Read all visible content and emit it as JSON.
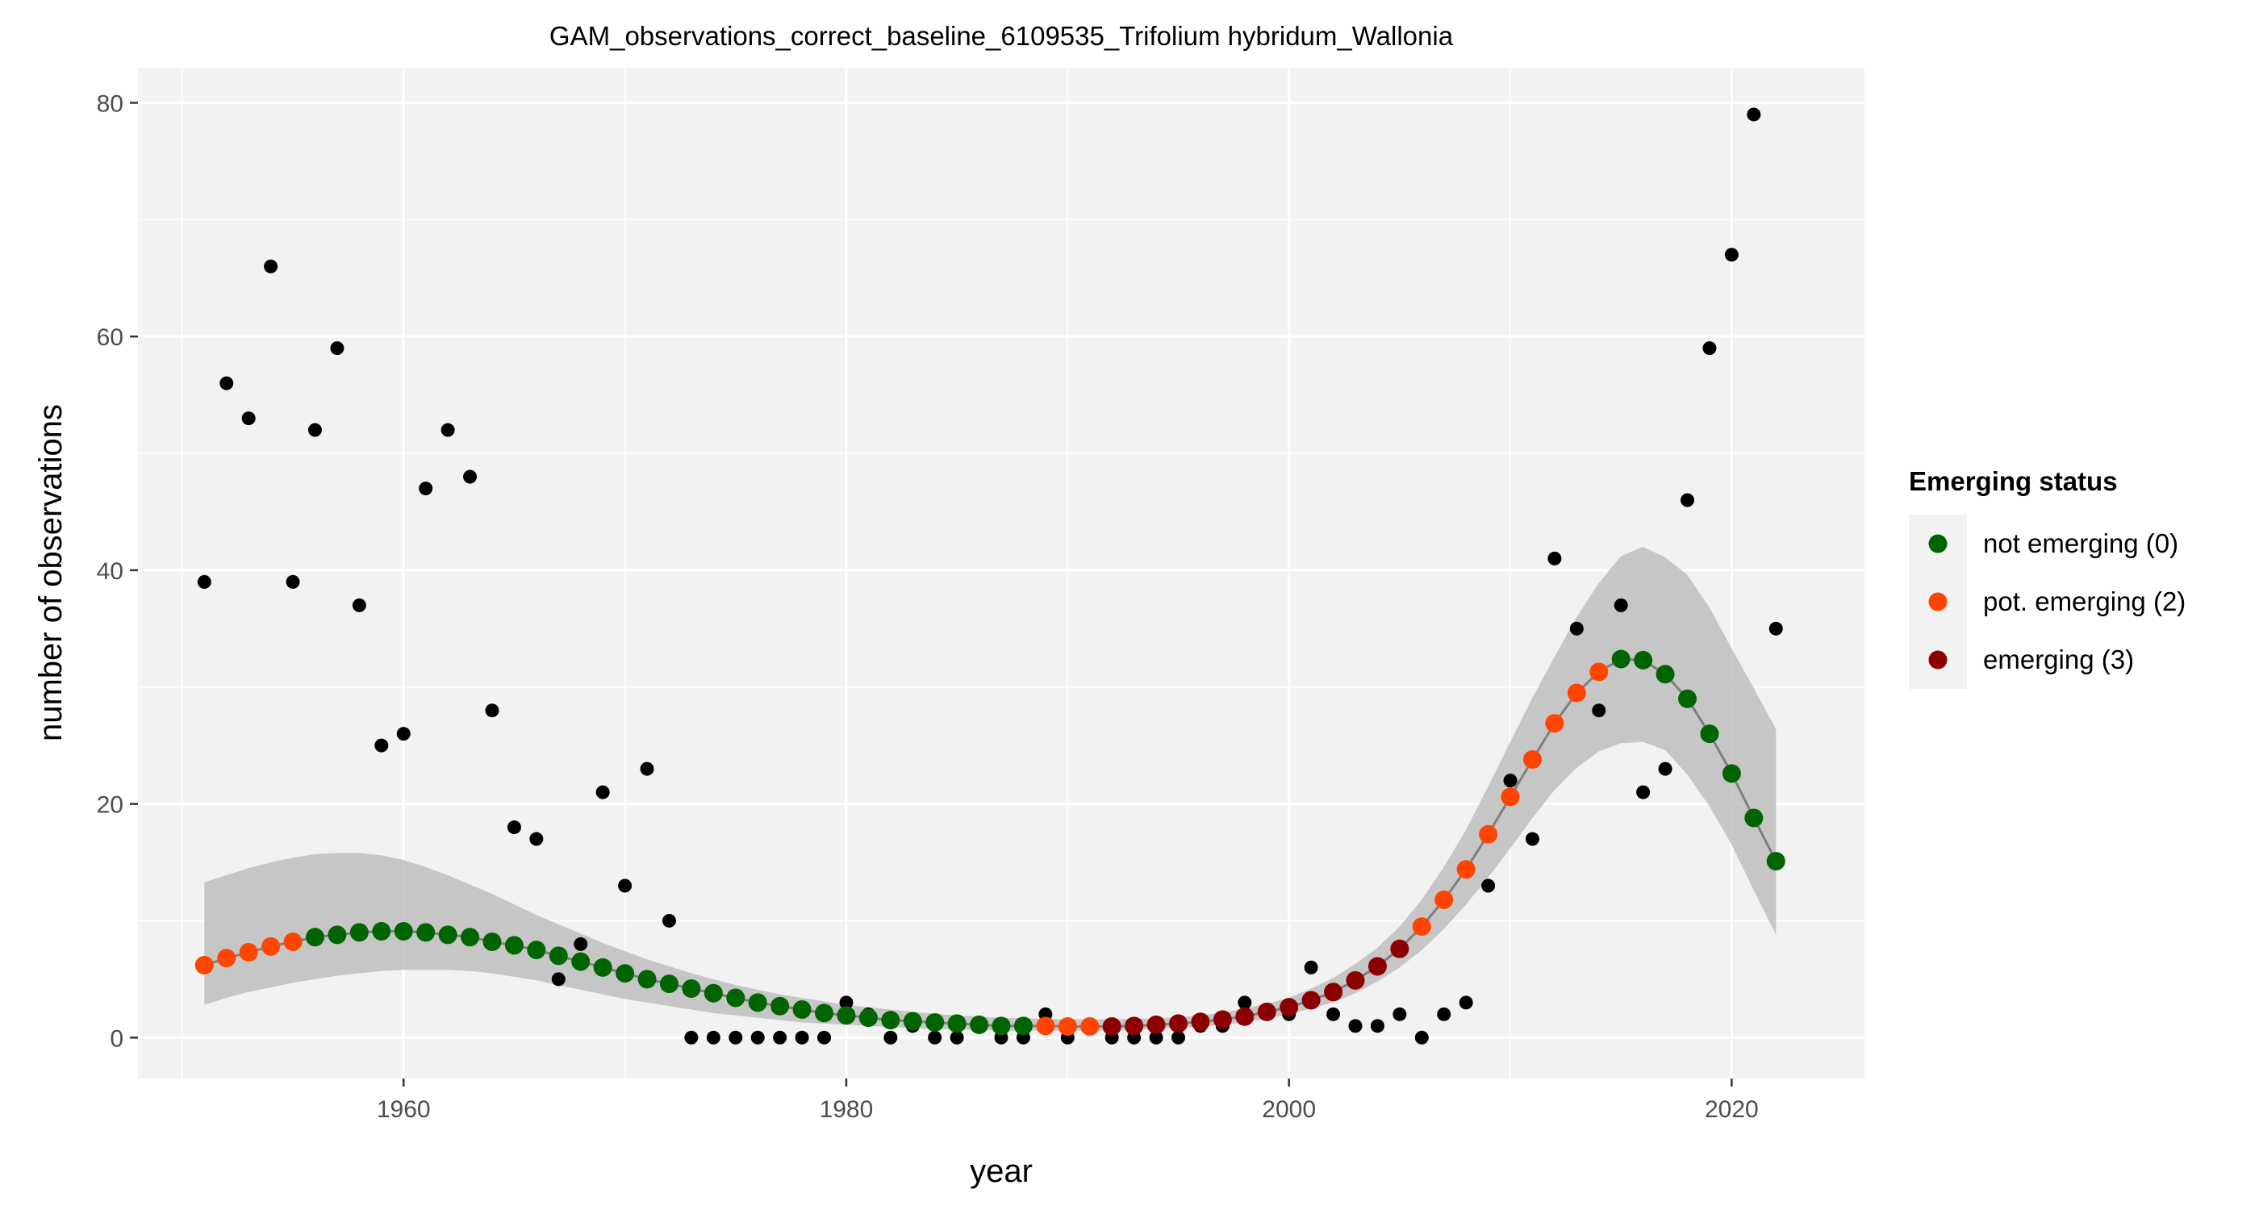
{
  "chart_data": {
    "type": "scatter",
    "title": "GAM_observations_correct_baseline_6109535_Trifolium hybridum_Wallonia",
    "xlabel": "year",
    "ylabel": "number of observations",
    "xlim": [
      1948,
      2026
    ],
    "ylim": [
      -3.5,
      83
    ],
    "x_ticks": [
      1960,
      1980,
      2000,
      2020
    ],
    "y_ticks": [
      0,
      20,
      40,
      60,
      80
    ],
    "grid": true,
    "legend": {
      "title": "Emerging status",
      "position": "right",
      "entries": [
        {
          "label": "not emerging (0)",
          "color": "#006400"
        },
        {
          "label": "pot. emerging (2)",
          "color": "#ff4500"
        },
        {
          "label": "emerging (3)",
          "color": "#8b0000"
        }
      ]
    },
    "observed": {
      "x": [
        1951,
        1952,
        1953,
        1954,
        1955,
        1956,
        1957,
        1958,
        1959,
        1960,
        1961,
        1962,
        1963,
        1964,
        1965,
        1966,
        1967,
        1968,
        1969,
        1970,
        1971,
        1972,
        1973,
        1974,
        1975,
        1976,
        1977,
        1978,
        1979,
        1980,
        1981,
        1982,
        1983,
        1984,
        1985,
        1986,
        1987,
        1988,
        1989,
        1990,
        1991,
        1992,
        1993,
        1994,
        1995,
        1996,
        1997,
        1998,
        1999,
        2000,
        2001,
        2002,
        2003,
        2004,
        2005,
        2006,
        2007,
        2008,
        2009,
        2010,
        2011,
        2012,
        2013,
        2014,
        2015,
        2016,
        2017,
        2018,
        2019,
        2020,
        2021,
        2022
      ],
      "y": [
        39,
        56,
        53,
        66,
        39,
        52,
        59,
        37,
        25,
        26,
        47,
        52,
        48,
        28,
        18,
        17,
        5,
        8,
        21,
        13,
        23,
        10,
        0,
        0,
        0,
        0,
        0,
        0,
        0,
        3,
        2,
        0,
        1,
        0,
        0,
        1,
        0,
        0,
        2,
        0,
        1,
        0,
        0,
        0,
        0,
        1,
        1,
        3,
        2,
        2,
        6,
        2,
        1,
        1,
        2,
        0,
        2,
        3,
        13,
        22,
        17,
        41,
        35,
        28,
        37,
        21,
        23,
        46,
        59,
        67,
        79,
        35
      ],
      "color": "#000000"
    },
    "gam_fit": {
      "x": [
        1951,
        1952,
        1953,
        1954,
        1955,
        1956,
        1957,
        1958,
        1959,
        1960,
        1961,
        1962,
        1963,
        1964,
        1965,
        1966,
        1967,
        1968,
        1969,
        1970,
        1971,
        1972,
        1973,
        1974,
        1975,
        1976,
        1977,
        1978,
        1979,
        1980,
        1981,
        1982,
        1983,
        1984,
        1985,
        1986,
        1987,
        1988,
        1989,
        1990,
        1991,
        1992,
        1993,
        1994,
        1995,
        1996,
        1997,
        1998,
        1999,
        2000,
        2001,
        2002,
        2003,
        2004,
        2005,
        2006,
        2007,
        2008,
        2009,
        2010,
        2011,
        2012,
        2013,
        2014,
        2015,
        2016,
        2017,
        2018,
        2019,
        2020,
        2021,
        2022
      ],
      "y": [
        6.2,
        6.8,
        7.3,
        7.8,
        8.2,
        8.6,
        8.8,
        9.0,
        9.1,
        9.1,
        9.0,
        8.8,
        8.6,
        8.2,
        7.9,
        7.5,
        7.0,
        6.5,
        6.0,
        5.5,
        5.0,
        4.6,
        4.2,
        3.8,
        3.4,
        3.0,
        2.7,
        2.4,
        2.1,
        1.9,
        1.7,
        1.5,
        1.4,
        1.3,
        1.2,
        1.1,
        1.0,
        1.0,
        1.0,
        0.95,
        0.95,
        0.95,
        1.0,
        1.1,
        1.2,
        1.35,
        1.55,
        1.8,
        2.2,
        2.6,
        3.2,
        3.9,
        4.9,
        6.1,
        7.6,
        9.5,
        11.8,
        14.4,
        17.4,
        20.6,
        23.8,
        26.9,
        29.5,
        31.3,
        32.4,
        32.3,
        31.1,
        29.0,
        26.0,
        22.6,
        18.8,
        15.1
      ],
      "lower": [
        2.8,
        3.4,
        3.9,
        4.3,
        4.7,
        5.0,
        5.3,
        5.5,
        5.7,
        5.8,
        5.8,
        5.8,
        5.7,
        5.5,
        5.2,
        4.9,
        4.5,
        4.1,
        3.7,
        3.3,
        3.0,
        2.7,
        2.4,
        2.1,
        1.9,
        1.7,
        1.5,
        1.3,
        1.2,
        1.1,
        1.0,
        0.9,
        0.8,
        0.75,
        0.7,
        0.65,
        0.6,
        0.6,
        0.6,
        0.6,
        0.6,
        0.6,
        0.65,
        0.75,
        0.85,
        0.95,
        1.1,
        1.3,
        1.6,
        2.0,
        2.5,
        3.0,
        3.8,
        4.8,
        6.0,
        7.5,
        9.3,
        11.4,
        13.7,
        16.2,
        18.8,
        21.2,
        23.1,
        24.5,
        25.2,
        25.3,
        24.6,
        22.5,
        19.8,
        16.5,
        12.6,
        8.8
      ],
      "upper": [
        13.3,
        13.9,
        14.5,
        15.0,
        15.4,
        15.7,
        15.8,
        15.8,
        15.6,
        15.2,
        14.6,
        13.9,
        13.1,
        12.3,
        11.4,
        10.5,
        9.7,
        8.9,
        8.1,
        7.4,
        6.7,
        6.1,
        5.5,
        5.0,
        4.5,
        4.1,
        3.7,
        3.4,
        3.1,
        2.8,
        2.6,
        2.4,
        2.2,
        2.05,
        1.9,
        1.8,
        1.7,
        1.65,
        1.6,
        1.55,
        1.55,
        1.55,
        1.6,
        1.65,
        1.75,
        1.9,
        2.15,
        2.5,
        2.9,
        3.4,
        4.2,
        5.1,
        6.3,
        7.7,
        9.5,
        11.8,
        14.6,
        17.8,
        21.5,
        25.3,
        29.1,
        32.6,
        36.0,
        38.9,
        41.2,
        42.0,
        41.1,
        39.6,
        36.8,
        33.3,
        29.9,
        26.4
      ],
      "status": [
        2,
        2,
        2,
        2,
        2,
        0,
        0,
        0,
        0,
        0,
        0,
        0,
        0,
        0,
        0,
        0,
        0,
        0,
        0,
        0,
        0,
        0,
        0,
        0,
        0,
        0,
        0,
        0,
        0,
        0,
        0,
        0,
        0,
        0,
        0,
        0,
        0,
        0,
        2,
        2,
        2,
        3,
        3,
        3,
        3,
        3,
        3,
        3,
        3,
        3,
        3,
        3,
        3,
        3,
        3,
        2,
        2,
        2,
        2,
        2,
        2,
        2,
        2,
        2,
        0,
        0,
        0,
        0,
        0,
        0,
        0,
        0
      ],
      "ribbon_color": "#bebebe",
      "line_color": "#7f7f7f"
    }
  }
}
